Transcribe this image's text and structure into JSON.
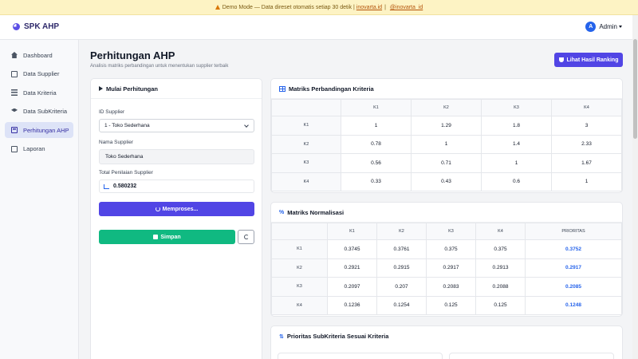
{
  "banner": {
    "text": "Demo Mode — Data direset otomatis setiap 30 detik |",
    "link_web": "inovarta.id",
    "sep": "|",
    "link_ig": "@inovarta_id"
  },
  "header": {
    "brand": "SPK AHP",
    "user_initial": "A",
    "user_name": "Admin"
  },
  "sidebar": {
    "items": [
      {
        "label": "Dashboard",
        "icon": "home-icon"
      },
      {
        "label": "Data Supplier",
        "icon": "document-icon"
      },
      {
        "label": "Data Kriteria",
        "icon": "list-icon"
      },
      {
        "label": "Data SubKriteria",
        "icon": "layers-icon"
      },
      {
        "label": "Perhitungan AHP",
        "icon": "calculator-icon",
        "active": true
      },
      {
        "label": "Laporan",
        "icon": "report-icon"
      }
    ]
  },
  "page": {
    "title": "Perhitungan AHP",
    "subtitle": "Analisis matriks perbandingan untuk menentukan supplier terbaik",
    "rank_button": "Lihat Hasil Ranking"
  },
  "form": {
    "title": "Mulai Perhitungan",
    "supplier_id_label": "ID Supplier",
    "supplier_id_value": "1 - Toko Sederhana",
    "supplier_name_label": "Nama Supplier",
    "supplier_name_value": "Toko Sederhana",
    "score_label": "Total Penilaian Supplier",
    "score_value": "0.580232",
    "process_button": "Memproses...",
    "save_button": "Simpan"
  },
  "comparison": {
    "title": "Matriks Perbandingan Kriteria",
    "headers": [
      "",
      "K1",
      "K2",
      "K3",
      "K4"
    ],
    "rows": [
      [
        "K1",
        "1",
        "1.29",
        "1.8",
        "3"
      ],
      [
        "K2",
        "0.78",
        "1",
        "1.4",
        "2.33"
      ],
      [
        "K3",
        "0.56",
        "0.71",
        "1",
        "1.67"
      ],
      [
        "K4",
        "0.33",
        "0.43",
        "0.6",
        "1"
      ]
    ]
  },
  "normalized": {
    "title": "Matriks Normalisasi",
    "headers": [
      "",
      "K1",
      "K2",
      "K3",
      "K4",
      "PRIORITAS"
    ],
    "rows": [
      [
        "K1",
        "0.3745",
        "0.3761",
        "0.375",
        "0.375",
        "0.3752"
      ],
      [
        "K2",
        "0.2921",
        "0.2915",
        "0.2917",
        "0.2913",
        "0.2917"
      ],
      [
        "K3",
        "0.2097",
        "0.207",
        "0.2083",
        "0.2088",
        "0.2085"
      ],
      [
        "K4",
        "0.1236",
        "0.1254",
        "0.125",
        "0.125",
        "0.1248"
      ]
    ]
  },
  "subcriteria": {
    "title": "Prioritas SubKriteria Sesuai Kriteria"
  },
  "colors": {
    "primary": "#5145e5",
    "success": "#10b981",
    "link": "#2563eb",
    "banner": "#fdf3c4"
  }
}
